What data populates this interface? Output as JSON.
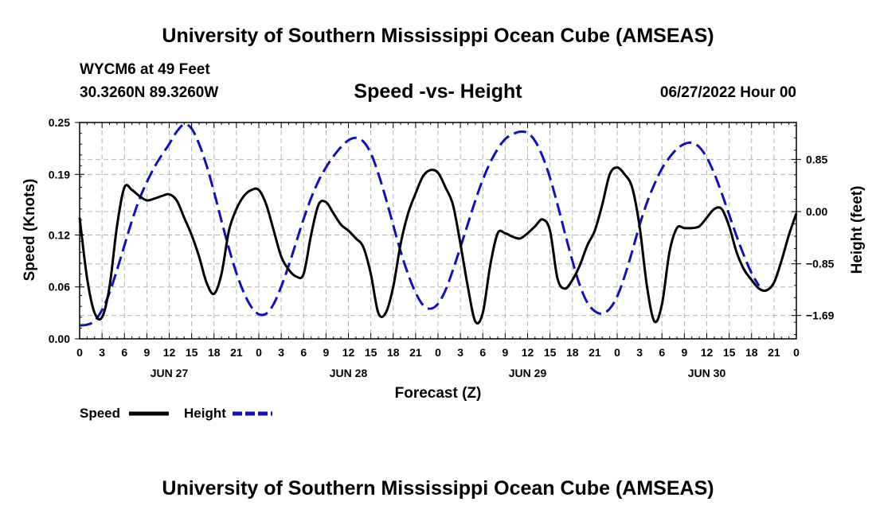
{
  "header": {
    "title_top": "University of Southern Mississippi Ocean Cube (AMSEAS)",
    "title_bottom": "University of Southern Mississippi Ocean Cube (AMSEAS)",
    "station": "WYCM6 at 49 Feet",
    "location": "30.3260N  89.3260W",
    "date": "06/27/2022 Hour 00"
  },
  "chart_data": {
    "type": "line",
    "title": "Speed -vs- Height",
    "xlabel": "Forecast (Z)",
    "ylabel": "Speed (Knots)",
    "y2label": "Height (feet)",
    "xlim": [
      0,
      96
    ],
    "ylim": [
      0,
      0.25
    ],
    "y2lim": [
      -2.07,
      1.45
    ],
    "x_ticks": [
      0,
      3,
      6,
      9,
      12,
      15,
      18,
      21,
      24,
      27,
      30,
      33,
      36,
      39,
      42,
      45,
      48,
      51,
      54,
      57,
      60,
      63,
      66,
      69,
      72,
      75,
      78,
      81,
      84,
      87,
      90,
      93,
      96
    ],
    "x_tick_labels": [
      "0",
      "3",
      "6",
      "9",
      "12",
      "15",
      "18",
      "21",
      "0",
      "3",
      "6",
      "9",
      "12",
      "15",
      "18",
      "21",
      "0",
      "3",
      "6",
      "9",
      "12",
      "15",
      "18",
      "21",
      "0",
      "3",
      "6",
      "9",
      "12",
      "15",
      "18",
      "21",
      "0"
    ],
    "day_labels": [
      {
        "x": 12,
        "label": "JUN 27"
      },
      {
        "x": 36,
        "label": "JUN 28"
      },
      {
        "x": 60,
        "label": "JUN 29"
      },
      {
        "x": 84,
        "label": "JUN 30"
      }
    ],
    "y_ticks": [
      0.0,
      0.06,
      0.12,
      0.19,
      0.25
    ],
    "y_tick_labels": [
      "0.00",
      "0.06",
      "0.12",
      "0.19",
      "0.25"
    ],
    "y2_ticks": [
      0.85,
      0.0,
      -0.85,
      -1.69
    ],
    "y2_tick_labels": [
      "0.85",
      "0.00",
      "−0.85",
      "−1.69"
    ],
    "series": [
      {
        "name": "Speed",
        "axis": "left",
        "color": "#000000",
        "dash": "solid",
        "points": [
          [
            0,
            0.14
          ],
          [
            1,
            0.07
          ],
          [
            2,
            0.03
          ],
          [
            3,
            0.025
          ],
          [
            4,
            0.06
          ],
          [
            5,
            0.13
          ],
          [
            6,
            0.175
          ],
          [
            7,
            0.172
          ],
          [
            8,
            0.165
          ],
          [
            9,
            0.16
          ],
          [
            10,
            0.162
          ],
          [
            11,
            0.165
          ],
          [
            12,
            0.167
          ],
          [
            13,
            0.16
          ],
          [
            14,
            0.14
          ],
          [
            15,
            0.12
          ],
          [
            16,
            0.095
          ],
          [
            17,
            0.065
          ],
          [
            18,
            0.052
          ],
          [
            19,
            0.075
          ],
          [
            20,
            0.125
          ],
          [
            21,
            0.15
          ],
          [
            22,
            0.165
          ],
          [
            23,
            0.172
          ],
          [
            24,
            0.172
          ],
          [
            25,
            0.155
          ],
          [
            26,
            0.125
          ],
          [
            27,
            0.095
          ],
          [
            28,
            0.08
          ],
          [
            29,
            0.072
          ],
          [
            30,
            0.075
          ],
          [
            31,
            0.12
          ],
          [
            32,
            0.155
          ],
          [
            33,
            0.158
          ],
          [
            34,
            0.145
          ],
          [
            35,
            0.132
          ],
          [
            36,
            0.125
          ],
          [
            37,
            0.116
          ],
          [
            38,
            0.106
          ],
          [
            39,
            0.075
          ],
          [
            40,
            0.03
          ],
          [
            41,
            0.03
          ],
          [
            42,
            0.06
          ],
          [
            43,
            0.11
          ],
          [
            44,
            0.145
          ],
          [
            45,
            0.168
          ],
          [
            46,
            0.188
          ],
          [
            47,
            0.195
          ],
          [
            48,
            0.192
          ],
          [
            49,
            0.175
          ],
          [
            50,
            0.155
          ],
          [
            51,
            0.11
          ],
          [
            52,
            0.06
          ],
          [
            53,
            0.02
          ],
          [
            54,
            0.03
          ],
          [
            55,
            0.085
          ],
          [
            56,
            0.122
          ],
          [
            57,
            0.122
          ],
          [
            58,
            0.118
          ],
          [
            59,
            0.116
          ],
          [
            60,
            0.122
          ],
          [
            61,
            0.13
          ],
          [
            62,
            0.138
          ],
          [
            63,
            0.125
          ],
          [
            64,
            0.07
          ],
          [
            65,
            0.058
          ],
          [
            66,
            0.068
          ],
          [
            67,
            0.085
          ],
          [
            68,
            0.108
          ],
          [
            69,
            0.125
          ],
          [
            70,
            0.155
          ],
          [
            71,
            0.19
          ],
          [
            72,
            0.198
          ],
          [
            73,
            0.19
          ],
          [
            74,
            0.175
          ],
          [
            75,
            0.13
          ],
          [
            76,
            0.06
          ],
          [
            77,
            0.02
          ],
          [
            78,
            0.04
          ],
          [
            79,
            0.1
          ],
          [
            80,
            0.128
          ],
          [
            81,
            0.128
          ],
          [
            82,
            0.128
          ],
          [
            83,
            0.13
          ],
          [
            84,
            0.14
          ],
          [
            85,
            0.15
          ],
          [
            86,
            0.15
          ],
          [
            87,
            0.13
          ],
          [
            88,
            0.1
          ],
          [
            89,
            0.08
          ],
          [
            90,
            0.068
          ],
          [
            91,
            0.058
          ],
          [
            92,
            0.056
          ],
          [
            93,
            0.065
          ],
          [
            94,
            0.09
          ],
          [
            95,
            0.12
          ],
          [
            96,
            0.145
          ]
        ]
      },
      {
        "name": "Height",
        "axis": "right",
        "color": "#1010c0",
        "dash": "dashed",
        "points": [
          [
            0,
            -1.85
          ],
          [
            1,
            -1.84
          ],
          [
            2,
            -1.78
          ],
          [
            3,
            -1.6
          ],
          [
            4,
            -1.32
          ],
          [
            5,
            -0.95
          ],
          [
            6,
            -0.55
          ],
          [
            7,
            -0.15
          ],
          [
            8,
            0.2
          ],
          [
            9,
            0.48
          ],
          [
            10,
            0.72
          ],
          [
            11,
            0.92
          ],
          [
            12,
            1.1
          ],
          [
            13,
            1.3
          ],
          [
            14,
            1.42
          ],
          [
            15,
            1.35
          ],
          [
            16,
            1.1
          ],
          [
            17,
            0.75
          ],
          [
            18,
            0.32
          ],
          [
            19,
            -0.15
          ],
          [
            20,
            -0.6
          ],
          [
            21,
            -1.0
          ],
          [
            22,
            -1.32
          ],
          [
            23,
            -1.55
          ],
          [
            24,
            -1.67
          ],
          [
            25,
            -1.66
          ],
          [
            26,
            -1.5
          ],
          [
            27,
            -1.22
          ],
          [
            28,
            -0.88
          ],
          [
            29,
            -0.5
          ],
          [
            30,
            -0.12
          ],
          [
            31,
            0.22
          ],
          [
            32,
            0.5
          ],
          [
            33,
            0.72
          ],
          [
            34,
            0.9
          ],
          [
            35,
            1.05
          ],
          [
            36,
            1.16
          ],
          [
            37,
            1.2
          ],
          [
            38,
            1.14
          ],
          [
            39,
            0.95
          ],
          [
            40,
            0.62
          ],
          [
            41,
            0.22
          ],
          [
            42,
            -0.22
          ],
          [
            43,
            -0.65
          ],
          [
            44,
            -1.02
          ],
          [
            45,
            -1.32
          ],
          [
            46,
            -1.52
          ],
          [
            47,
            -1.58
          ],
          [
            48,
            -1.5
          ],
          [
            49,
            -1.28
          ],
          [
            50,
            -0.95
          ],
          [
            51,
            -0.58
          ],
          [
            52,
            -0.2
          ],
          [
            53,
            0.18
          ],
          [
            54,
            0.52
          ],
          [
            55,
            0.8
          ],
          [
            56,
            1.02
          ],
          [
            57,
            1.18
          ],
          [
            58,
            1.26
          ],
          [
            59,
            1.3
          ],
          [
            60,
            1.28
          ],
          [
            61,
            1.15
          ],
          [
            62,
            0.9
          ],
          [
            63,
            0.55
          ],
          [
            64,
            0.12
          ],
          [
            65,
            -0.35
          ],
          [
            66,
            -0.8
          ],
          [
            67,
            -1.2
          ],
          [
            68,
            -1.48
          ],
          [
            69,
            -1.62
          ],
          [
            70,
            -1.66
          ],
          [
            71,
            -1.58
          ],
          [
            72,
            -1.38
          ],
          [
            73,
            -1.05
          ],
          [
            74,
            -0.65
          ],
          [
            75,
            -0.22
          ],
          [
            76,
            0.15
          ],
          [
            77,
            0.45
          ],
          [
            78,
            0.7
          ],
          [
            79,
            0.88
          ],
          [
            80,
            1.02
          ],
          [
            81,
            1.1
          ],
          [
            82,
            1.12
          ],
          [
            83,
            1.05
          ],
          [
            84,
            0.88
          ],
          [
            85,
            0.62
          ],
          [
            86,
            0.3
          ],
          [
            87,
            -0.05
          ],
          [
            88,
            -0.4
          ],
          [
            89,
            -0.72
          ],
          [
            90,
            -1.0
          ],
          [
            91,
            -1.21
          ]
        ]
      }
    ],
    "legend": [
      {
        "label": "Speed",
        "color": "#000000",
        "dash": "solid"
      },
      {
        "label": "Height",
        "color": "#1010c0",
        "dash": "dashed"
      }
    ]
  }
}
